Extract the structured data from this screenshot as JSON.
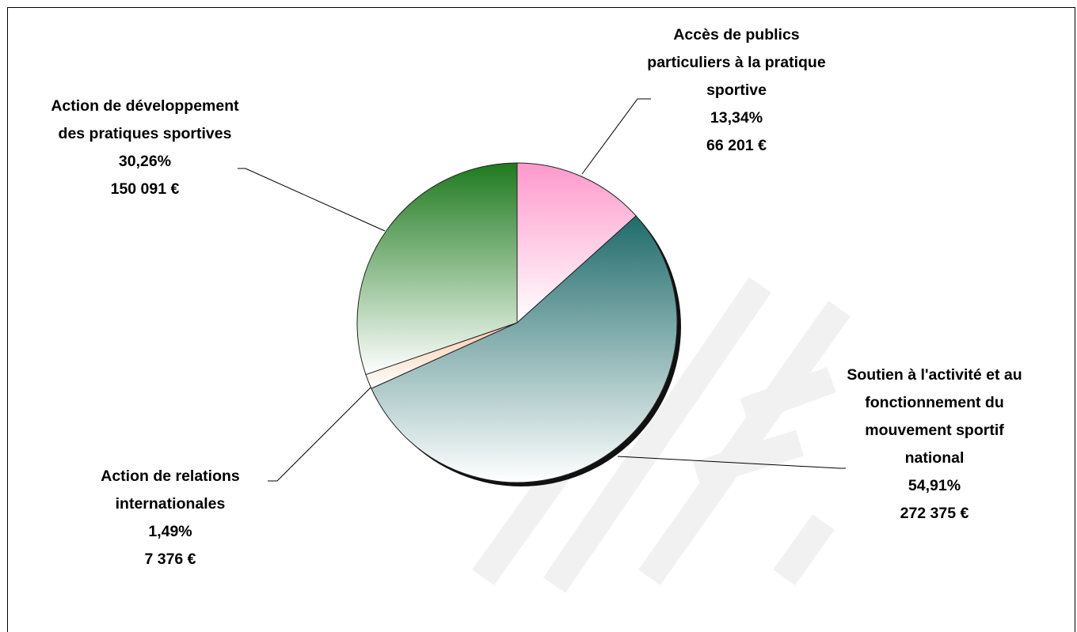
{
  "chart_data": {
    "type": "pie",
    "categories": [
      "Accès de publics particuliers à la pratique sportive",
      "Soutien à l'activité et au fonctionnement du mouvement sportif national",
      "Action de relations internationales",
      "Action de développement des pratiques sportives"
    ],
    "values": [
      13.34,
      54.91,
      1.49,
      30.26
    ],
    "value_labels": [
      "13,34%",
      "54,91%",
      "1,49%",
      "30,26%"
    ],
    "amounts": [
      66201,
      272375,
      7376,
      150091
    ],
    "amount_labels": [
      "66 201 €",
      "272 375 €",
      "7 376 €",
      "150 091 €"
    ],
    "colors": [
      "#ff99cc",
      "#1f6b6b",
      "#fbc9a4",
      "#1e7a1e"
    ]
  }
}
